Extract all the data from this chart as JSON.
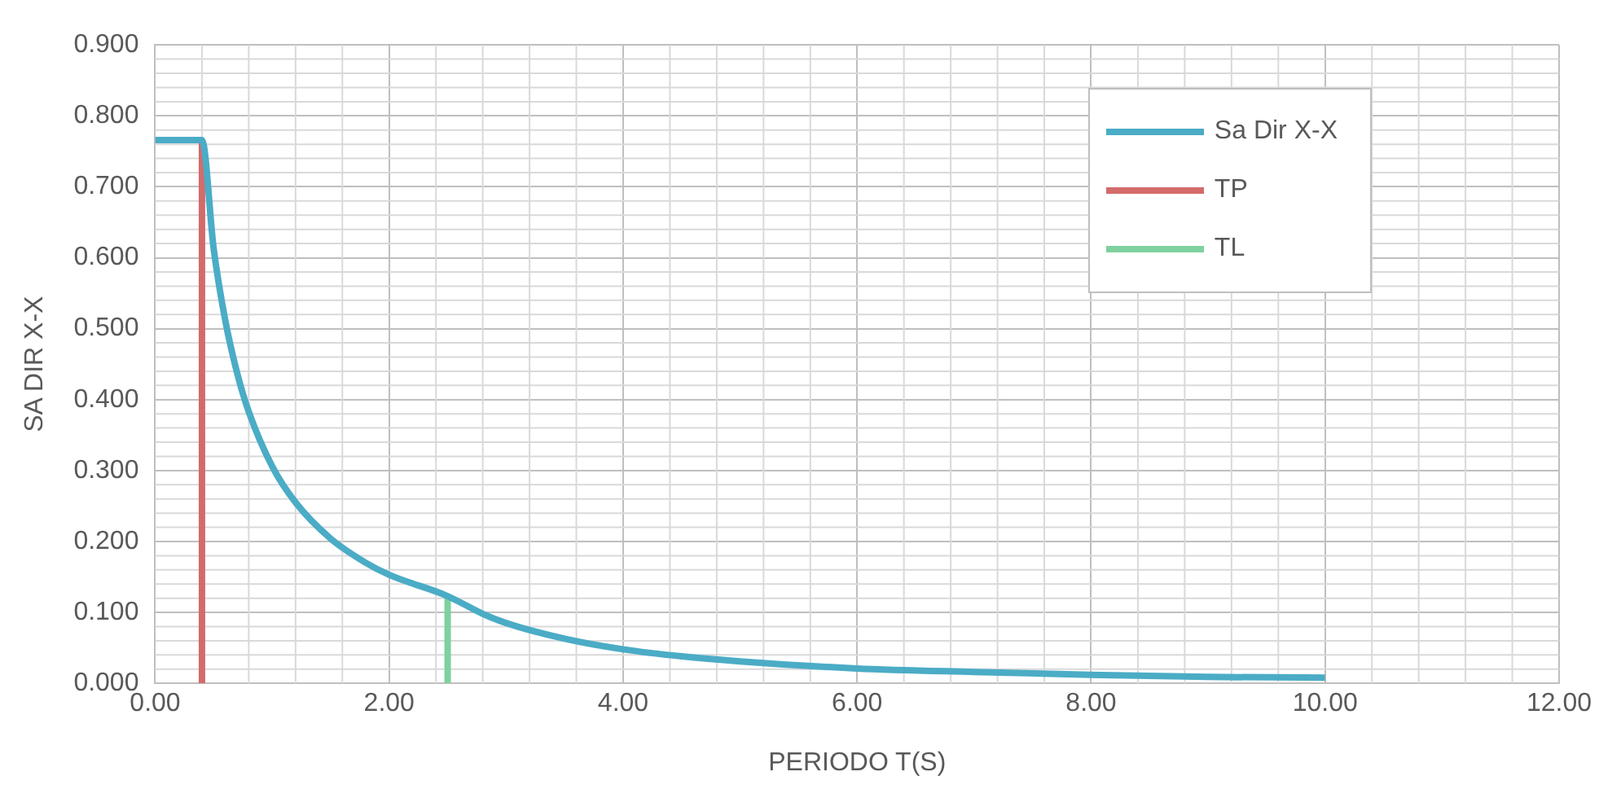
{
  "chart_data": {
    "type": "line",
    "xlabel": "PERIODO T(S)",
    "ylabel": "SA DIR X-X",
    "xlim": [
      0,
      12
    ],
    "ylim": [
      0,
      0.9
    ],
    "xticks": [
      {
        "value": 0,
        "label": "0.00"
      },
      {
        "value": 2,
        "label": "2.00"
      },
      {
        "value": 4,
        "label": "4.00"
      },
      {
        "value": 6,
        "label": "6.00"
      },
      {
        "value": 8,
        "label": "8.00"
      },
      {
        "value": 10,
        "label": "10.00"
      },
      {
        "value": 12,
        "label": "12.00"
      }
    ],
    "yticks": [
      {
        "value": 0,
        "label": "0.000"
      },
      {
        "value": 0.1,
        "label": "0.100"
      },
      {
        "value": 0.2,
        "label": "0.200"
      },
      {
        "value": 0.3,
        "label": "0.300"
      },
      {
        "value": 0.4,
        "label": "0.400"
      },
      {
        "value": 0.5,
        "label": "0.500"
      },
      {
        "value": 0.6,
        "label": "0.600"
      },
      {
        "value": 0.7,
        "label": "0.700"
      },
      {
        "value": 0.8,
        "label": "0.800"
      },
      {
        "value": 0.9,
        "label": "0.900"
      }
    ],
    "grid": true,
    "legend": "top right",
    "marker": "none",
    "line_style": "solid",
    "series": [
      {
        "name": "Sa Dir X-X",
        "color": "#4bacc6",
        "x": [
          0,
          0.4,
          0.5,
          0.6,
          0.7,
          0.8,
          1.0,
          1.2,
          1.5,
          1.8,
          2.0,
          2.5,
          2.8,
          3.0,
          3.5,
          4.0,
          4.5,
          5.0,
          6.0,
          7.0,
          8.0,
          9.0,
          10.0
        ],
        "values": [
          0.766,
          0.766,
          0.613,
          0.511,
          0.438,
          0.383,
          0.306,
          0.255,
          0.204,
          0.17,
          0.153,
          0.123,
          0.098,
          0.085,
          0.063,
          0.048,
          0.038,
          0.031,
          0.021,
          0.016,
          0.012,
          0.009,
          0.008
        ]
      },
      {
        "name": "TP",
        "color": "#d36b6b",
        "x": [
          0.4,
          0.4
        ],
        "values": [
          0,
          0.766
        ]
      },
      {
        "name": "TL",
        "color": "#7fd1a0",
        "x": [
          2.5,
          2.5
        ],
        "values": [
          0,
          0.123
        ]
      }
    ]
  }
}
